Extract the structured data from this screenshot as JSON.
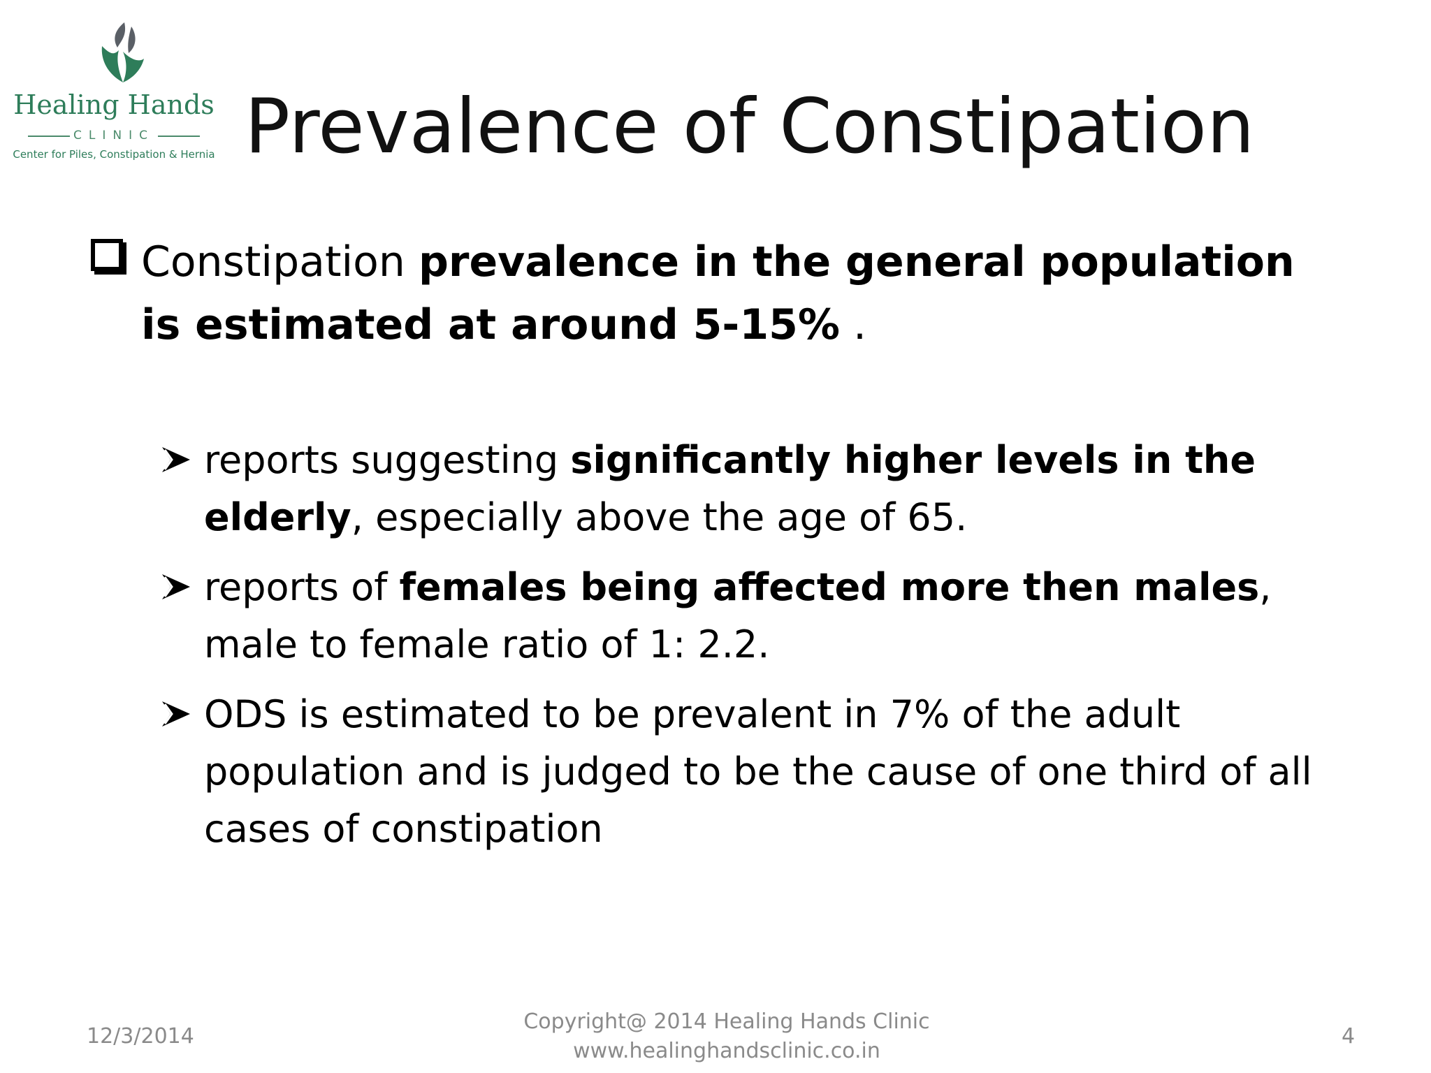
{
  "logo": {
    "name": "Healing Hands",
    "clinic": "CLINIC",
    "tagline": "Center for Piles, Constipation & Hernia",
    "colors": {
      "primary": "#2e7d5a",
      "secondary": "#5a5f66"
    }
  },
  "title": "Prevalence of Constipation",
  "main_bullet": {
    "icon": "checkbox-icon",
    "part1": "Constipation ",
    "part2_bold": "prevalence in the general population is estimated at around 5-15%",
    "part3": " ."
  },
  "sub_bullets": [
    {
      "icon": "arrow-bullet-icon",
      "pre": "reports suggesting ",
      "bold": "significantly higher levels in the elderly",
      "post": ", especially above the age of 65."
    },
    {
      "icon": "arrow-bullet-icon",
      "pre": "reports of ",
      "bold": "females being affected more then males",
      "post": ", male to female ratio of 1: 2.2."
    },
    {
      "icon": "arrow-bullet-icon",
      "pre": "ODS is estimated to be prevalent in 7% of the adult population and is judged to be the cause of one third of all cases of constipation",
      "bold": "",
      "post": ""
    }
  ],
  "footer": {
    "date": "12/3/2014",
    "copyright": "Copyright@ 2014 Healing Hands Clinic",
    "website": "www.healinghandsclinic.co.in",
    "page_number": "4"
  }
}
